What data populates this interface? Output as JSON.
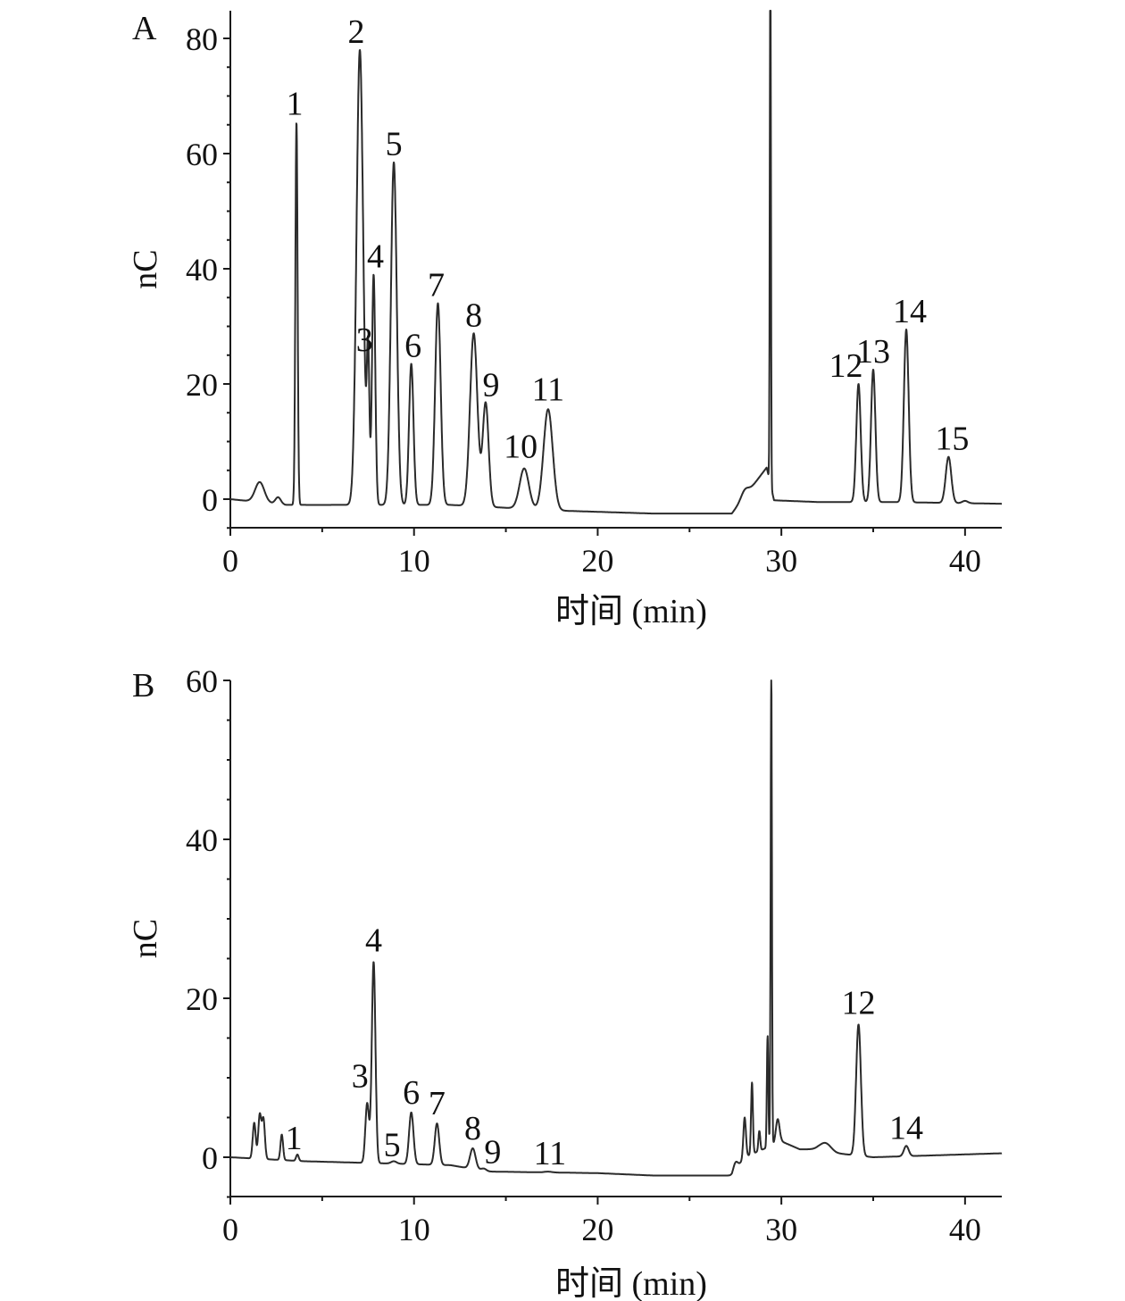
{
  "chart_data": [
    {
      "type": "line",
      "panel_label": "A",
      "xlabel": "时间 (min)",
      "ylabel": "nC",
      "xlim": [
        0,
        42
      ],
      "ylim": [
        -5,
        85
      ],
      "xticks": [
        "0",
        "10",
        "20",
        "30",
        "40"
      ],
      "yticks": [
        "0",
        "20",
        "40",
        "60",
        "80"
      ],
      "baseline": [
        [
          0,
          0
        ],
        [
          3,
          -1
        ],
        [
          7,
          -1
        ],
        [
          12,
          -1
        ],
        [
          18,
          -2
        ],
        [
          23,
          -2.5
        ],
        [
          27.3,
          -2.5
        ],
        [
          29.2,
          5.5
        ],
        [
          29.6,
          -0.2
        ],
        [
          32,
          -0.5
        ],
        [
          36,
          -0.5
        ],
        [
          42,
          -0.8
        ]
      ],
      "peaks": [
        {
          "label": "1",
          "rt": 3.6,
          "height": 66.5,
          "width": 0.06
        },
        {
          "label": "2",
          "rt": 7.05,
          "height": 79,
          "width": 0.18
        },
        {
          "label": "3",
          "rt": 7.5,
          "height": 25.5,
          "width": 0.07
        },
        {
          "label": "4",
          "rt": 7.8,
          "height": 40,
          "width": 0.09
        },
        {
          "label": "5",
          "rt": 8.9,
          "height": 59.5,
          "width": 0.16
        },
        {
          "label": "6",
          "rt": 9.85,
          "height": 24.5,
          "width": 0.12
        },
        {
          "label": "7",
          "rt": 11.3,
          "height": 35,
          "width": 0.15
        },
        {
          "label": "8",
          "rt": 13.25,
          "height": 30,
          "width": 0.2
        },
        {
          "label": "9",
          "rt": 13.9,
          "height": 18,
          "width": 0.16
        },
        {
          "label": "10",
          "rt": 16.0,
          "height": 7,
          "width": 0.25
        },
        {
          "label": "11",
          "rt": 17.3,
          "height": 17.5,
          "width": 0.25
        },
        {
          "label": "12",
          "rt": 34.2,
          "height": 20.5,
          "width": 0.12
        },
        {
          "label": "13",
          "rt": 35.0,
          "height": 23,
          "width": 0.12
        },
        {
          "label": "14",
          "rt": 36.8,
          "height": 30,
          "width": 0.13
        },
        {
          "label": "15",
          "rt": 39.1,
          "height": 8,
          "width": 0.15
        }
      ],
      "unlabeled_peaks": [
        {
          "rt": 1.6,
          "height": 3.5,
          "width": 0.25
        },
        {
          "rt": 2.6,
          "height": 1.2,
          "width": 0.15
        },
        {
          "rt": 28.0,
          "height": 1.2,
          "width": 0.2
        },
        {
          "rt": 29.4,
          "height": 95,
          "width": 0.03
        },
        {
          "rt": 40.0,
          "height": 0.4,
          "width": 0.15
        }
      ]
    },
    {
      "type": "line",
      "panel_label": "B",
      "xlabel": "时间 (min)",
      "ylabel": "nC",
      "xlim": [
        0,
        42
      ],
      "ylim": [
        -5,
        60
      ],
      "xticks": [
        "0",
        "10",
        "20",
        "30",
        "40"
      ],
      "yticks": [
        "0",
        "20",
        "40",
        "60"
      ],
      "baseline": [
        [
          0,
          0
        ],
        [
          4,
          -0.5
        ],
        [
          12,
          -1
        ],
        [
          14,
          -1.8
        ],
        [
          20,
          -2
        ],
        [
          23,
          -2.3
        ],
        [
          27.3,
          -2.3
        ],
        [
          28,
          0
        ],
        [
          30,
          2
        ],
        [
          31,
          1
        ],
        [
          32,
          1
        ],
        [
          33,
          0.5
        ],
        [
          35,
          0
        ],
        [
          42,
          0.5
        ]
      ],
      "peaks": [
        {
          "label": "1",
          "rt": 3.65,
          "height": 0.8,
          "width": 0.07
        },
        {
          "label": "3",
          "rt": 7.45,
          "height": 7.5,
          "width": 0.1
        },
        {
          "label": "4",
          "rt": 7.8,
          "height": 25.3,
          "width": 0.1
        },
        {
          "label": "5",
          "rt": 8.9,
          "height": 0.3,
          "width": 0.15
        },
        {
          "label": "6",
          "rt": 9.85,
          "height": 6.5,
          "width": 0.12
        },
        {
          "label": "7",
          "rt": 11.25,
          "height": 5.2,
          "width": 0.12
        },
        {
          "label": "8",
          "rt": 13.2,
          "height": 2.6,
          "width": 0.15
        },
        {
          "label": "9",
          "rt": 13.8,
          "height": 0.3,
          "width": 0.15
        },
        {
          "label": "11",
          "rt": 17.3,
          "height": 0.1,
          "width": 0.2
        },
        {
          "label": "12",
          "rt": 34.2,
          "height": 16.5,
          "width": 0.13
        },
        {
          "label": "14",
          "rt": 36.8,
          "height": 1.3,
          "width": 0.13
        }
      ],
      "unlabeled_peaks": [
        {
          "rt": 1.3,
          "height": 4.5,
          "width": 0.08
        },
        {
          "rt": 1.6,
          "height": 5.5,
          "width": 0.08
        },
        {
          "rt": 1.8,
          "height": 5.0,
          "width": 0.08
        },
        {
          "rt": 2.8,
          "height": 3.2,
          "width": 0.07
        },
        {
          "rt": 27.5,
          "height": 1.0,
          "width": 0.12
        },
        {
          "rt": 28.0,
          "height": 5.0,
          "width": 0.07
        },
        {
          "rt": 28.4,
          "height": 9.0,
          "width": 0.05
        },
        {
          "rt": 28.8,
          "height": 2.5,
          "width": 0.05
        },
        {
          "rt": 29.25,
          "height": 14,
          "width": 0.04
        },
        {
          "rt": 29.45,
          "height": 60,
          "width": 0.035
        },
        {
          "rt": 29.8,
          "height": 3.0,
          "width": 0.1
        },
        {
          "rt": 32.4,
          "height": 1.0,
          "width": 0.3
        }
      ]
    }
  ]
}
